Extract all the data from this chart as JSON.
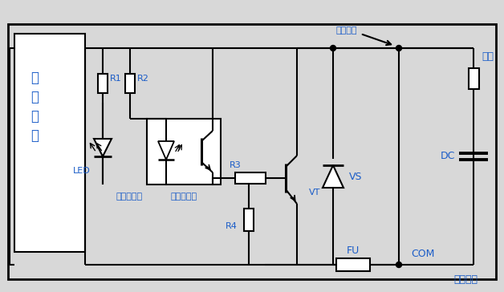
{
  "bg_color": "#d8d8d8",
  "line_color": "black",
  "text_color": "#1a5cc8",
  "component_fill": "white",
  "labels": {
    "R1": "R1",
    "R2": "R2",
    "R3": "R3",
    "R4": "R4",
    "LED": "LED",
    "output_indicator": "输出状态灯",
    "optocoupler": "光电耦合器",
    "VT": "VT",
    "VS": "VS",
    "FU": "FU",
    "COM": "COM",
    "DC": "DC",
    "output_port": "输出端口",
    "load": "负载",
    "user_power": "用户电源"
  },
  "inner_chars": [
    "内",
    "部",
    "电",
    "路"
  ],
  "figsize": [
    6.28,
    3.64
  ],
  "dpi": 100
}
